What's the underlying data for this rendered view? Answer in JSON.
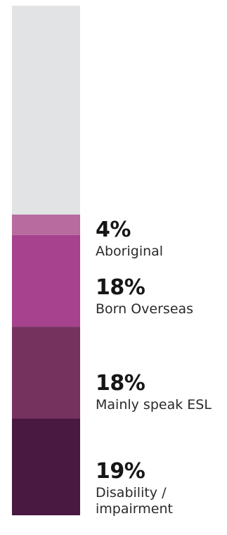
{
  "chart_data": {
    "type": "bar",
    "stacked": true,
    "orientation": "vertical",
    "ylim": [
      0,
      100
    ],
    "series": [
      {
        "name": "Disability / impairment",
        "value": 19,
        "value_label": "19%",
        "label": "Disability / impairment",
        "color": "#4a1942"
      },
      {
        "name": "Mainly speak ESL",
        "value": 18,
        "value_label": "18%",
        "label": "Mainly speak ESL",
        "color": "#76325f"
      },
      {
        "name": "Born Overseas",
        "value": 18,
        "value_label": "18%",
        "label": "Born Overseas",
        "color": "#a6428e"
      },
      {
        "name": "Aboriginal",
        "value": 4,
        "value_label": "4%",
        "label": "Aboriginal",
        "color": "#b86b9e"
      }
    ],
    "remainder_color": "#e2e3e5"
  }
}
